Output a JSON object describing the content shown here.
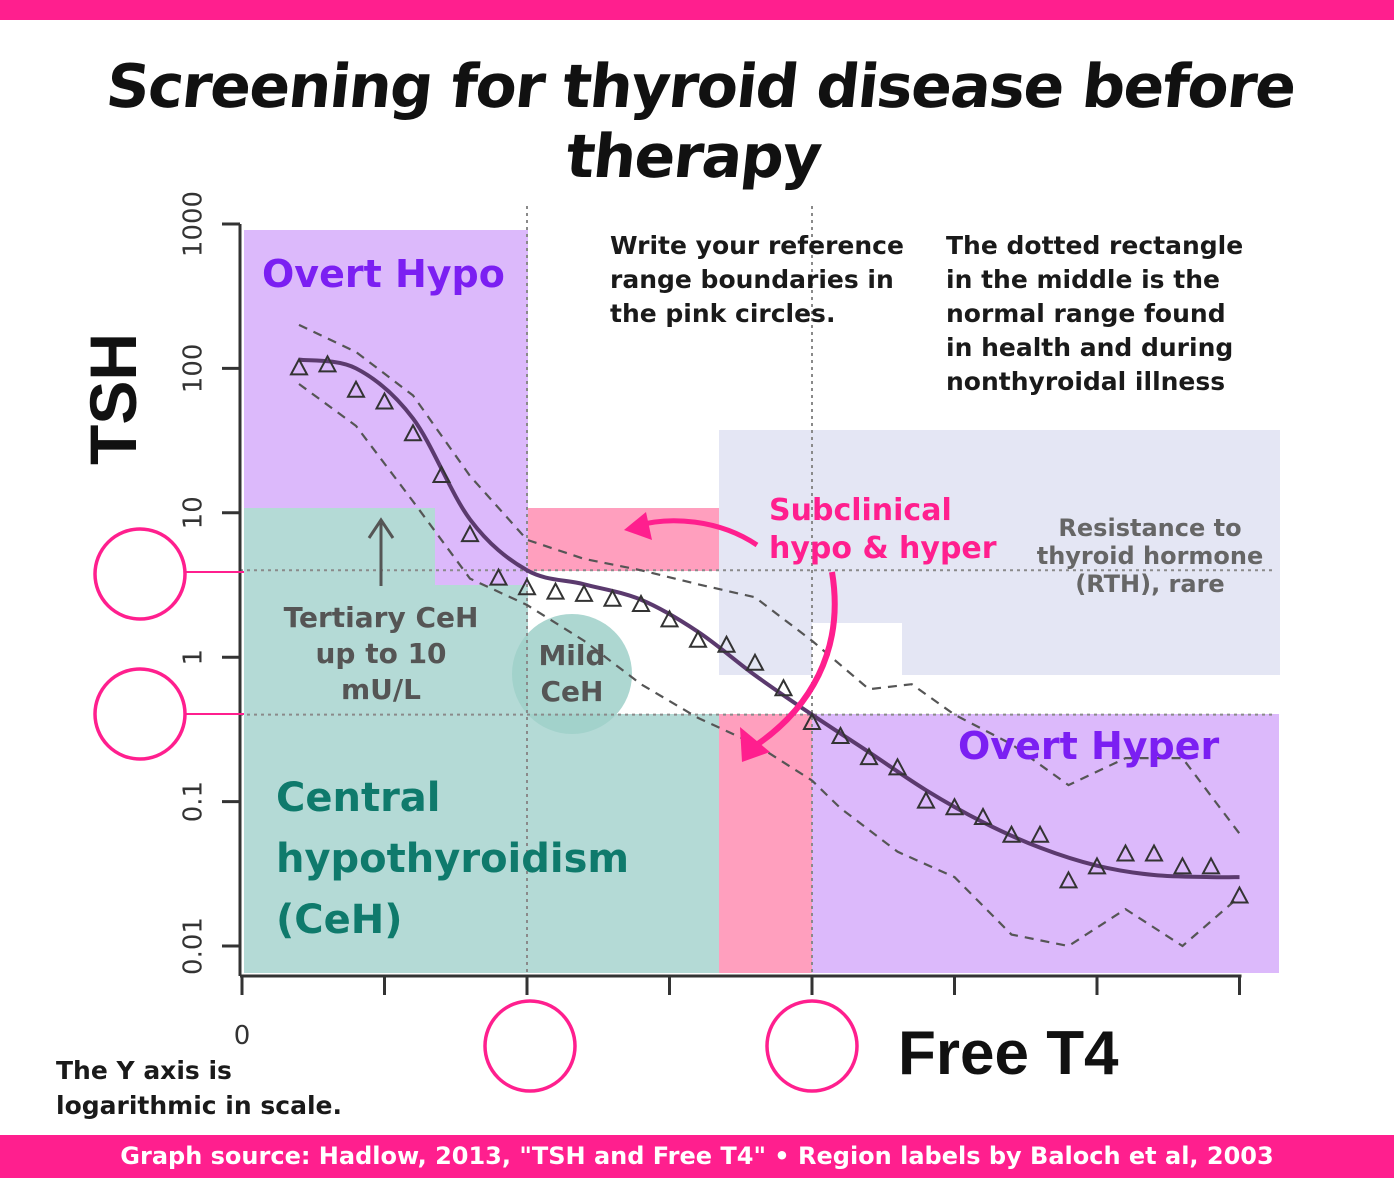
{
  "title": "Screening for thyroid disease before therapy",
  "footer": "Graph source: Hadlow, 2013, \"TSH and Free T4\" • Region labels by Baloch et al, 2003",
  "notes": {
    "reference_range": [
      "Write your reference",
      "range boundaries in",
      "the pink circles."
    ],
    "dotted_rectangle": [
      "The dotted rectangle",
      "in the middle is the",
      "normal range found",
      "in health and during",
      "nonthyroidal illness"
    ],
    "log_scale": [
      "The Y axis is",
      "logarithmic in scale."
    ]
  },
  "regions": {
    "overt_hypo": "Overt Hypo",
    "overt_hyper": "Overt Hyper",
    "subclinical": [
      "Subclinical",
      "hypo & hyper"
    ],
    "rth": [
      "Resistance to",
      "thyroid hormone",
      "(RTH), rare"
    ],
    "tertiary": [
      "Tertiary CeH",
      "up to 10",
      "mU/L"
    ],
    "mild": [
      "Mild",
      "CeH"
    ],
    "central": [
      "Central",
      "hypothyroidism",
      "(CeH)"
    ]
  },
  "colors": {
    "accent_pink": "#ff1f8e",
    "overt_purple": "#dcb9fb",
    "overt_text": "#7b1ff2",
    "central_teal": "#b4dad6",
    "central_text": "#0f7a6c",
    "subclinical_pink": "#ff9fbe",
    "rth_blue": "#e4e6f4",
    "curve": "#5b3a6e"
  },
  "chart_data": {
    "type": "line",
    "xlabel": "Free T4",
    "ylabel": "TSH",
    "y_scale": "log",
    "ylim": [
      0.01,
      1000
    ],
    "y_ticks": [
      "0.01",
      "0.1",
      "1",
      "10",
      "100",
      "1000"
    ],
    "x_ticks": [
      "0"
    ],
    "x_tick_count": 8,
    "reference_lines": {
      "tsh_upper": 4.0,
      "tsh_lower": 0.4
    },
    "series": [
      {
        "kind": "observed",
        "marker": "triangle",
        "x": [
          0.4,
          0.6,
          0.8,
          1.0,
          1.2,
          1.4,
          1.6,
          1.8,
          2.0,
          2.2,
          2.4,
          2.6,
          2.8,
          3.0,
          3.2,
          3.4,
          3.6,
          3.8,
          4.0,
          4.2,
          4.4,
          4.6,
          4.8,
          5.0,
          5.2,
          5.4,
          5.6,
          5.8,
          6.0,
          6.2,
          6.4,
          6.6,
          6.8,
          7.0
        ],
        "y": [
          100,
          105,
          70,
          58,
          35,
          18,
          7,
          3.5,
          3.0,
          2.8,
          2.7,
          2.5,
          2.3,
          1.8,
          1.3,
          1.2,
          0.9,
          0.6,
          0.35,
          0.28,
          0.2,
          0.17,
          0.1,
          0.09,
          0.077,
          0.058,
          0.058,
          0.028,
          0.035,
          0.043,
          0.043,
          0.035,
          0.035,
          0.022
        ]
      },
      {
        "kind": "median",
        "x": [
          0.4,
          0.8,
          1.2,
          1.6,
          2.0,
          2.4,
          2.8,
          3.2,
          3.6,
          4.0,
          4.4,
          4.8,
          5.2,
          5.6,
          6.0,
          6.4,
          6.8,
          7.0
        ],
        "y": [
          115,
          100,
          45,
          9,
          4.0,
          3.2,
          2.5,
          1.5,
          0.75,
          0.4,
          0.22,
          0.12,
          0.072,
          0.048,
          0.036,
          0.031,
          0.03,
          0.03
        ]
      },
      {
        "kind": "upper_bound",
        "x": [
          0.4,
          0.8,
          1.2,
          1.6,
          2.0,
          2.4,
          2.8,
          3.2,
          3.6,
          4.0,
          4.4,
          4.7,
          5.0,
          5.4,
          5.8,
          6.2,
          6.6,
          7.0
        ],
        "y": [
          200,
          130,
          65,
          18,
          6.5,
          4.8,
          4.0,
          3.2,
          2.6,
          1.3,
          0.6,
          0.65,
          0.4,
          0.25,
          0.13,
          0.2,
          0.2,
          0.06
        ]
      },
      {
        "kind": "lower_bound",
        "x": [
          0.4,
          0.8,
          1.2,
          1.6,
          2.0,
          2.4,
          2.8,
          3.2,
          3.6,
          4.0,
          4.2,
          4.6,
          5.0,
          5.4,
          5.8,
          6.2,
          6.6,
          7.0
        ],
        "y": [
          78,
          40,
          12,
          3.5,
          2.3,
          1.3,
          0.65,
          0.38,
          0.25,
          0.14,
          0.09,
          0.045,
          0.03,
          0.012,
          0.01,
          0.018,
          0.01,
          0.022
        ]
      }
    ]
  }
}
